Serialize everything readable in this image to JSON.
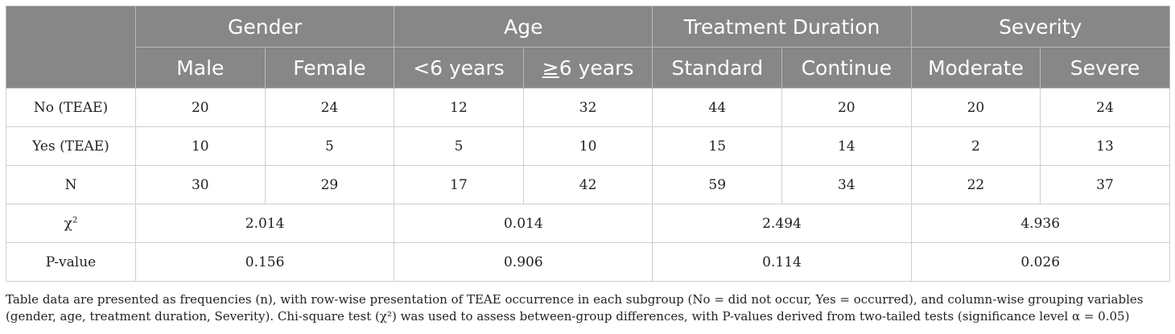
{
  "table": {
    "groups": [
      "Gender",
      "Age",
      "Treatment Duration",
      "Severity"
    ],
    "subheaders": {
      "male": "Male",
      "female": "Female",
      "age_lt": "<6 years",
      "age_ge_sym": "≥",
      "age_ge_rest": "6 years",
      "standard": "Standard",
      "continue": "Continue",
      "moderate": "Moderate",
      "severe": "Severe"
    },
    "rows": [
      {
        "label": "No (TEAE)",
        "values": [
          "20",
          "24",
          "12",
          "32",
          "44",
          "20",
          "20",
          "24"
        ]
      },
      {
        "label": "Yes (TEAE)",
        "values": [
          "10",
          "5",
          "5",
          "10",
          "15",
          "14",
          "2",
          "13"
        ]
      },
      {
        "label": "N",
        "values": [
          "30",
          "29",
          "17",
          "42",
          "59",
          "34",
          "22",
          "37"
        ]
      }
    ],
    "chi": {
      "symbol": "χ",
      "sup": "2",
      "values": [
        "2.014",
        "0.014",
        "2.494",
        "4.936"
      ]
    },
    "pvalue": {
      "label": "P-value",
      "values": [
        "0.156",
        "0.906",
        "0.114",
        "0.026"
      ]
    }
  },
  "footnote": "Table data are presented as frequencies (n), with row-wise presentation of TEAE occurrence in each subgroup (No = did not occur, Yes = occurred), and column-wise grouping variables (gender, age, treatment duration, Severity). Chi-square test (χ²) was used to assess between-group differences, with P-values derived from two-tailed tests (significance level α = 0.05)"
}
